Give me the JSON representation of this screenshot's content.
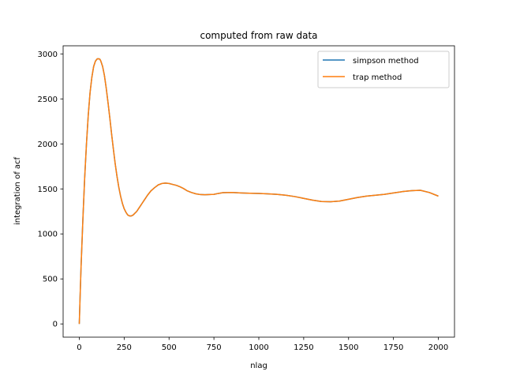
{
  "chart_data": {
    "type": "line",
    "title": "computed from raw data",
    "xlabel": "nlag",
    "ylabel": "integration of acf",
    "xlim": [
      -90,
      2090
    ],
    "ylim": [
      -147,
      3090
    ],
    "xticks": [
      0,
      250,
      500,
      750,
      1000,
      1250,
      1500,
      1750,
      2000
    ],
    "yticks": [
      0,
      500,
      1000,
      1500,
      2000,
      2500,
      3000
    ],
    "grid": false,
    "legend_position": "top-right",
    "series": [
      {
        "name": "simpson method",
        "color": "#1f77b4",
        "x": [
          0,
          5,
          10,
          20,
          30,
          40,
          50,
          60,
          70,
          80,
          90,
          100,
          110,
          115,
          120,
          130,
          140,
          150,
          160,
          170,
          180,
          190,
          200,
          210,
          220,
          230,
          240,
          250,
          260,
          270,
          280,
          290,
          300,
          310,
          320,
          330,
          340,
          350,
          360,
          370,
          380,
          390,
          400,
          420,
          440,
          460,
          480,
          500,
          520,
          540,
          560,
          580,
          600,
          625,
          650,
          675,
          700,
          725,
          750,
          775,
          800,
          850,
          900,
          950,
          1000,
          1050,
          1100,
          1150,
          1200,
          1250,
          1300,
          1350,
          1400,
          1450,
          1500,
          1550,
          1600,
          1650,
          1700,
          1750,
          1800,
          1850,
          1900,
          1950,
          2000
        ],
        "values": [
          0,
          330,
          640,
          1160,
          1620,
          2000,
          2320,
          2570,
          2740,
          2860,
          2920,
          2945,
          2945,
          2940,
          2920,
          2860,
          2760,
          2620,
          2460,
          2290,
          2110,
          1940,
          1780,
          1640,
          1520,
          1420,
          1340,
          1280,
          1240,
          1210,
          1200,
          1200,
          1210,
          1230,
          1250,
          1280,
          1310,
          1340,
          1370,
          1400,
          1430,
          1455,
          1480,
          1515,
          1545,
          1560,
          1565,
          1560,
          1550,
          1540,
          1525,
          1505,
          1480,
          1460,
          1445,
          1437,
          1435,
          1437,
          1440,
          1450,
          1458,
          1460,
          1455,
          1452,
          1450,
          1445,
          1440,
          1430,
          1415,
          1395,
          1375,
          1360,
          1357,
          1365,
          1385,
          1405,
          1420,
          1430,
          1440,
          1455,
          1470,
          1480,
          1485,
          1460,
          1420
        ]
      },
      {
        "name": "trap method",
        "color": "#ff7f0e",
        "x": [
          0,
          5,
          10,
          20,
          30,
          40,
          50,
          60,
          70,
          80,
          90,
          100,
          110,
          115,
          120,
          130,
          140,
          150,
          160,
          170,
          180,
          190,
          200,
          210,
          220,
          230,
          240,
          250,
          260,
          270,
          280,
          290,
          300,
          310,
          320,
          330,
          340,
          350,
          360,
          370,
          380,
          390,
          400,
          420,
          440,
          460,
          480,
          500,
          520,
          540,
          560,
          580,
          600,
          625,
          650,
          675,
          700,
          725,
          750,
          775,
          800,
          850,
          900,
          950,
          1000,
          1050,
          1100,
          1150,
          1200,
          1250,
          1300,
          1350,
          1400,
          1450,
          1500,
          1550,
          1600,
          1650,
          1700,
          1750,
          1800,
          1850,
          1900,
          1950,
          2000
        ],
        "values": [
          0,
          330,
          640,
          1160,
          1620,
          2000,
          2320,
          2570,
          2740,
          2860,
          2920,
          2945,
          2945,
          2940,
          2920,
          2860,
          2760,
          2620,
          2460,
          2290,
          2110,
          1940,
          1780,
          1640,
          1520,
          1420,
          1340,
          1280,
          1240,
          1210,
          1200,
          1200,
          1210,
          1230,
          1250,
          1280,
          1310,
          1340,
          1370,
          1400,
          1430,
          1455,
          1480,
          1515,
          1545,
          1560,
          1565,
          1560,
          1550,
          1540,
          1525,
          1505,
          1480,
          1460,
          1445,
          1437,
          1435,
          1437,
          1440,
          1450,
          1458,
          1460,
          1455,
          1452,
          1450,
          1445,
          1440,
          1430,
          1415,
          1395,
          1375,
          1360,
          1357,
          1365,
          1385,
          1405,
          1420,
          1430,
          1440,
          1455,
          1470,
          1480,
          1485,
          1460,
          1420
        ]
      }
    ]
  }
}
